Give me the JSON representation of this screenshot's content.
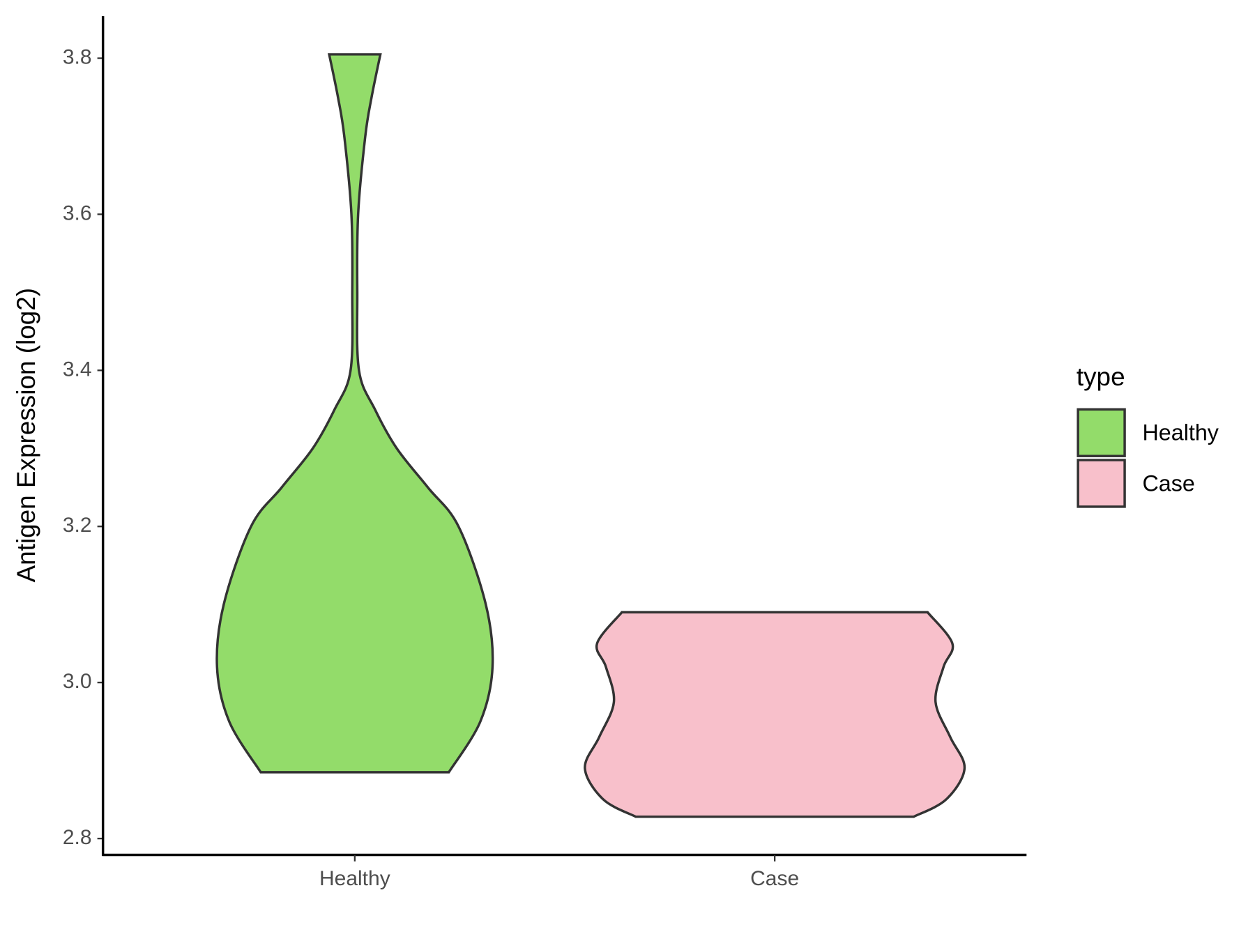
{
  "chart_data": {
    "type": "violin",
    "y_label": "Antigen Expression (log2)",
    "legend_title": "type",
    "categories": [
      "Healthy",
      "Case"
    ],
    "series": [
      {
        "name": "Healthy",
        "color": "#93dc6a",
        "y": [
          2.885,
          2.95,
          3.02,
          3.1,
          3.2,
          3.25,
          3.3,
          3.35,
          3.4,
          3.5,
          3.6,
          3.7,
          3.75,
          3.805
        ],
        "width": [
          0.224,
          0.299,
          0.328,
          0.312,
          0.247,
          0.174,
          0.1,
          0.048,
          0.01,
          0.006,
          0.008,
          0.025,
          0.04,
          0.061
        ]
      },
      {
        "name": "Case",
        "color": "#f8c0cb",
        "y": [
          2.828,
          2.85,
          2.89,
          2.93,
          2.975,
          3.02,
          3.05,
          3.09
        ],
        "width": [
          0.331,
          0.408,
          0.452,
          0.418,
          0.383,
          0.402,
          0.423,
          0.364
        ]
      }
    ],
    "ylim": [
      2.779,
      3.854
    ],
    "yticks": [
      2.8,
      {
        "value": 3,
        "label": "3.0"
      },
      3.2,
      3.4,
      3.6,
      3.8
    ],
    "legend_position": "right"
  }
}
